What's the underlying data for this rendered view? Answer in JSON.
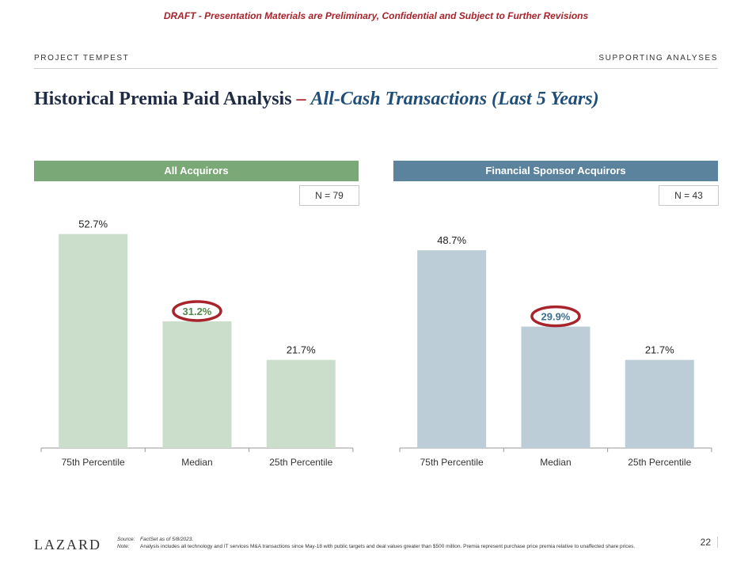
{
  "draft_banner": "DRAFT - Presentation Materials are Preliminary, Confidential and Subject to Further Revisions",
  "header": {
    "project": "PROJECT TEMPEST",
    "section": "SUPPORTING ANALYSES"
  },
  "title": {
    "main": "Historical Premia Paid Analysis",
    "dash": "–",
    "subtitle": "All-Cash Transactions (Last 5 Years)"
  },
  "colors": {
    "green_header": "#7aa977",
    "green_bar": "#cadecb",
    "blue_header": "#5b839d",
    "blue_bar": "#bccdd8",
    "highlight": "#a8242c"
  },
  "chart_data": [
    {
      "type": "bar",
      "title": "All Acquirors",
      "n_label": "N = 79",
      "categories": [
        "75th Percentile",
        "Median",
        "25th Percentile"
      ],
      "values": [
        52.7,
        31.2,
        21.7
      ],
      "value_labels": [
        "52.7%",
        "31.2%",
        "21.7%"
      ],
      "highlight_index": 1,
      "ylim": [
        0,
        55
      ],
      "xlabel": "",
      "ylabel": ""
    },
    {
      "type": "bar",
      "title": "Financial Sponsor Acquirors",
      "n_label": "N = 43",
      "categories": [
        "75th Percentile",
        "Median",
        "25th Percentile"
      ],
      "values": [
        48.7,
        29.9,
        21.7
      ],
      "value_labels": [
        "48.7%",
        "29.9%",
        "21.7%"
      ],
      "highlight_index": 1,
      "ylim": [
        0,
        55
      ],
      "xlabel": "",
      "ylabel": ""
    }
  ],
  "footer": {
    "logo": "LAZARD",
    "source_label": "Source:",
    "source_text": "FactSet as of 5/8/2023.",
    "note_label": "Note:",
    "note_text": "Analysis includes all technology and IT services M&A transactions since May-18 with public targets and deal values greater than $500 million. Premia represent purchase price premia relative to unaffected share prices.",
    "page_number": "22"
  }
}
